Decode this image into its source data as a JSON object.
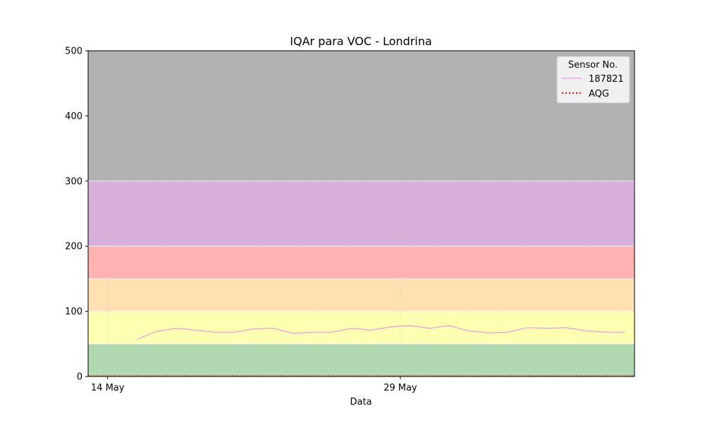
{
  "chart_data": {
    "type": "line",
    "title": "IQAr para VOC - Londrina",
    "xlabel": "Data",
    "ylabel": "",
    "ylim": [
      0,
      500
    ],
    "yticks": [
      0,
      100,
      200,
      300,
      400,
      500
    ],
    "xlim": [
      "2023-05-13",
      "2023-06-10"
    ],
    "xticks": [
      {
        "date": "2023-05-14",
        "label": "14 May"
      },
      {
        "date": "2023-05-29",
        "label": "29 May"
      }
    ],
    "grid": true,
    "legend": {
      "title": "Sensor No.",
      "placement": "top-right",
      "entries": [
        {
          "label": "187821",
          "style": "line",
          "color": "#ee82ee"
        },
        {
          "label": "AQG",
          "style": "dotted",
          "color": "#ff0000"
        }
      ]
    },
    "bands": [
      {
        "from": 0,
        "to": 50,
        "color": "#b2d8b2"
      },
      {
        "from": 50,
        "to": 100,
        "color": "#ffffb2"
      },
      {
        "from": 100,
        "to": 150,
        "color": "#ffe1b2"
      },
      {
        "from": 150,
        "to": 200,
        "color": "#ffb2b2"
      },
      {
        "from": 200,
        "to": 300,
        "color": "#d8b0d9"
      },
      {
        "from": 300,
        "to": 500,
        "color": "#b2b2b2"
      }
    ],
    "series": [
      {
        "name": "187821",
        "color": "#ee82ee",
        "x": [
          "2023-05-15",
          "2023-05-16",
          "2023-05-17",
          "2023-05-18",
          "2023-05-19",
          "2023-05-20",
          "2023-05-21",
          "2023-05-22",
          "2023-05-23",
          "2023-05-24",
          "2023-05-25",
          "2023-05-26",
          "2023-05-27",
          "2023-05-28",
          "2023-05-29",
          "2023-05-30",
          "2023-05-31",
          "2023-06-01",
          "2023-06-02",
          "2023-06-03",
          "2023-06-04",
          "2023-06-05",
          "2023-06-06",
          "2023-06-07",
          "2023-06-08",
          "2023-06-09"
        ],
        "values": [
          57,
          69,
          74,
          71,
          68,
          68,
          73,
          74,
          66,
          68,
          68,
          74,
          71,
          76,
          78,
          74,
          78,
          70,
          67,
          68,
          75,
          74,
          75,
          70,
          68,
          68
        ]
      },
      {
        "name": "AQG",
        "color": "#ff0000",
        "style": "dotted",
        "y": 1
      }
    ]
  }
}
